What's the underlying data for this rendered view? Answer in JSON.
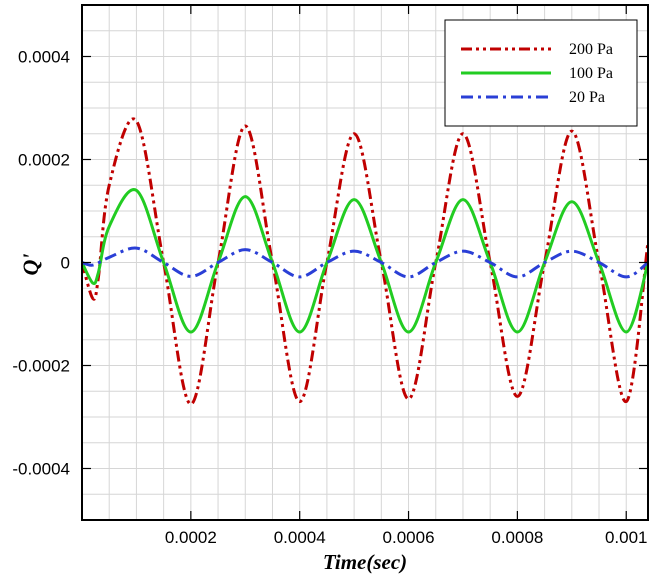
{
  "chart_data": {
    "type": "line",
    "title": "",
    "xlabel": "Time(sec)",
    "ylabel": "Q'",
    "xlim": [
      0,
      0.00104
    ],
    "ylim": [
      -0.0005,
      0.0005
    ],
    "grid": true,
    "legend_position": "top-right",
    "x_ticks": [
      0.0002,
      0.0004,
      0.0006,
      0.0008,
      0.001
    ],
    "x_tick_labels": [
      "0.0002",
      "0.0004",
      "0.0006",
      "0.0008",
      "0.001"
    ],
    "y_ticks": [
      -0.0004,
      -0.0002,
      0,
      0.0002,
      0.0004
    ],
    "y_tick_labels": [
      "-0.0004",
      "-0.0002",
      "0",
      "0.0002",
      "0.0004"
    ],
    "series": [
      {
        "name": "200 Pa",
        "color": "#c00000",
        "dash": "dash-dot-dot",
        "x": [
          0,
          2e-05,
          3e-05,
          5e-05,
          0.0001,
          0.00015,
          0.0002,
          0.00025,
          0.0003,
          0.00035,
          0.0004,
          0.00045,
          0.0005,
          0.00055,
          0.0006,
          0.00065,
          0.0007,
          0.00075,
          0.0008,
          0.00085,
          0.0009,
          0.00095,
          0.001,
          0.00104
        ],
        "values": [
          0,
          -7e-05,
          -3e-05,
          0.00015,
          0.000275,
          0.0,
          -0.000275,
          0.0,
          0.000265,
          0.0,
          -0.00027,
          0.0,
          0.00025,
          0.0,
          -0.000265,
          0.0,
          0.00025,
          0.0,
          -0.00026,
          0.0,
          0.000255,
          0.0,
          -0.00027,
          4e-05
        ]
      },
      {
        "name": "100 Pa",
        "color": "#22cc22",
        "dash": "solid",
        "x": [
          0,
          2e-05,
          3e-05,
          5e-05,
          0.0001,
          0.00015,
          0.0002,
          0.00025,
          0.0003,
          0.00035,
          0.0004,
          0.00045,
          0.0005,
          0.00055,
          0.0006,
          0.00065,
          0.0007,
          0.00075,
          0.0008,
          0.00085,
          0.0009,
          0.00095,
          0.001,
          0.00104
        ],
        "values": [
          0,
          -4e-05,
          -2e-05,
          7e-05,
          0.00014,
          0.0,
          -0.000135,
          0.0,
          0.000128,
          0.0,
          -0.000135,
          0.0,
          0.000122,
          0.0,
          -0.000135,
          0.0,
          0.000122,
          0.0,
          -0.000135,
          0.0,
          0.000118,
          0.0,
          -0.000135,
          0.0
        ]
      },
      {
        "name": "20 Pa",
        "color": "#2a3fd6",
        "dash": "dash-dot",
        "x": [
          0,
          2e-05,
          5e-05,
          0.0001,
          0.00015,
          0.0002,
          0.00025,
          0.0003,
          0.00035,
          0.0004,
          0.00045,
          0.0005,
          0.00055,
          0.0006,
          0.00065,
          0.0007,
          0.00075,
          0.0008,
          0.00085,
          0.0009,
          0.00095,
          0.001,
          0.00104
        ],
        "values": [
          0,
          -5e-06,
          1e-05,
          2.8e-05,
          0.0,
          -2.7e-05,
          0.0,
          2.5e-05,
          0.0,
          -2.8e-05,
          0.0,
          2.2e-05,
          0.0,
          -2.8e-05,
          0.0,
          2.2e-05,
          0.0,
          -2.8e-05,
          0.0,
          2.2e-05,
          0.0,
          -2.8e-05,
          0.0
        ]
      }
    ]
  }
}
